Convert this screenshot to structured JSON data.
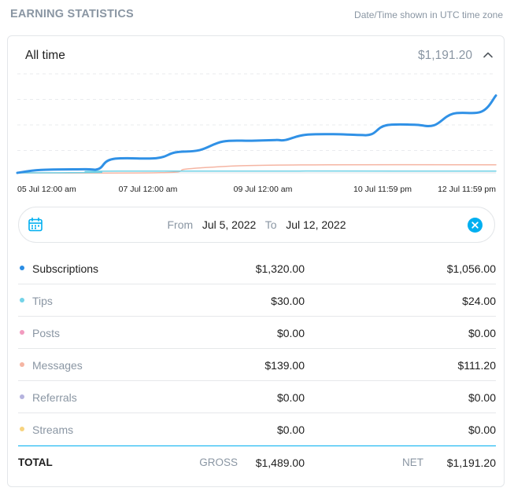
{
  "header": {
    "title": "EARNING STATISTICS",
    "timezone_note": "Date/Time shown in UTC time zone"
  },
  "card": {
    "period_label": "All time",
    "total_amount": "$1,191.20",
    "toggle_icon": "chevron-up-icon"
  },
  "chart_data": {
    "type": "line",
    "x_ticks": [
      "05 Jul 12:00 am",
      "07 Jul 12:00 am",
      "09 Jul 12:00 am",
      "10 Jul 11:59 pm",
      "12 Jul 11:59 pm"
    ],
    "x_range": [
      0,
      100
    ],
    "ylim": [
      0,
      1400
    ],
    "grid": true,
    "series": [
      {
        "key": "subscriptions",
        "color": "#3091e6",
        "points": [
          [
            0,
            0
          ],
          [
            5,
            40
          ],
          [
            14,
            50
          ],
          [
            17,
            55
          ],
          [
            20,
            190
          ],
          [
            29,
            200
          ],
          [
            33,
            280
          ],
          [
            38,
            310
          ],
          [
            43,
            430
          ],
          [
            49,
            440
          ],
          [
            54,
            450
          ],
          [
            56,
            450
          ],
          [
            60,
            520
          ],
          [
            66,
            530
          ],
          [
            71,
            520
          ],
          [
            74,
            530
          ],
          [
            77,
            650
          ],
          [
            83,
            660
          ],
          [
            87,
            650
          ],
          [
            91,
            810
          ],
          [
            97,
            840
          ],
          [
            100,
            1060
          ]
        ]
      },
      {
        "key": "tips",
        "color": "#6fd1e6",
        "points": [
          [
            0,
            0
          ],
          [
            17,
            5
          ],
          [
            21,
            24
          ],
          [
            100,
            24
          ]
        ]
      },
      {
        "key": "messages",
        "color": "#f5b5a3",
        "points": [
          [
            0,
            0
          ],
          [
            30,
            2
          ],
          [
            35,
            50
          ],
          [
            40,
            75
          ],
          [
            48,
            100
          ],
          [
            65,
            111
          ],
          [
            100,
            111
          ]
        ]
      }
    ]
  },
  "range": {
    "from_label": "From",
    "from_value": "Jul 5, 2022",
    "to_label": "To",
    "to_value": "Jul 12, 2022",
    "calendar_icon": "calendar-icon",
    "clear_icon": "close-icon"
  },
  "rows": [
    {
      "name": "Subscriptions",
      "gross": "$1,320.00",
      "net": "$1,056.00",
      "color": "#2a8de4"
    },
    {
      "name": "Tips",
      "gross": "$30.00",
      "net": "$24.00",
      "color": "#74d3e8"
    },
    {
      "name": "Posts",
      "gross": "$0.00",
      "net": "$0.00",
      "color": "#f29bbf"
    },
    {
      "name": "Messages",
      "gross": "$139.00",
      "net": "$111.20",
      "color": "#f5b5a3"
    },
    {
      "name": "Referrals",
      "gross": "$0.00",
      "net": "$0.00",
      "color": "#b5b3de"
    },
    {
      "name": "Streams",
      "gross": "$0.00",
      "net": "$0.00",
      "color": "#f7d37f"
    }
  ],
  "totals": {
    "label": "TOTAL",
    "gross_label": "GROSS",
    "gross_value": "$1,489.00",
    "net_label": "NET",
    "net_value": "$1,191.20"
  }
}
